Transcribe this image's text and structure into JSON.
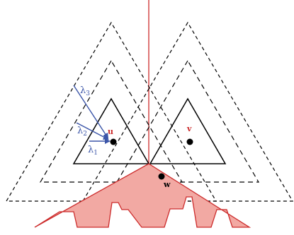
{
  "labels": {
    "u": "u",
    "v": "v",
    "w": "w",
    "lambda1": "λ",
    "lambda1_sub": "1",
    "lambda2": "λ",
    "lambda2_sub": "2",
    "lambda3": "λ",
    "lambda3_sub": "3"
  },
  "colors": {
    "triangle_stroke": "#000000",
    "vertical_line": "#cc2b2b",
    "shape_fill": "#f2a9a3",
    "shape_stroke": "#cc2b2b",
    "arrow": "#3b55a8",
    "label_u": "#cc2b2b",
    "label_v": "#cc2b2b",
    "label_w": "#000000",
    "lambda_labels": "#3b55a8"
  }
}
